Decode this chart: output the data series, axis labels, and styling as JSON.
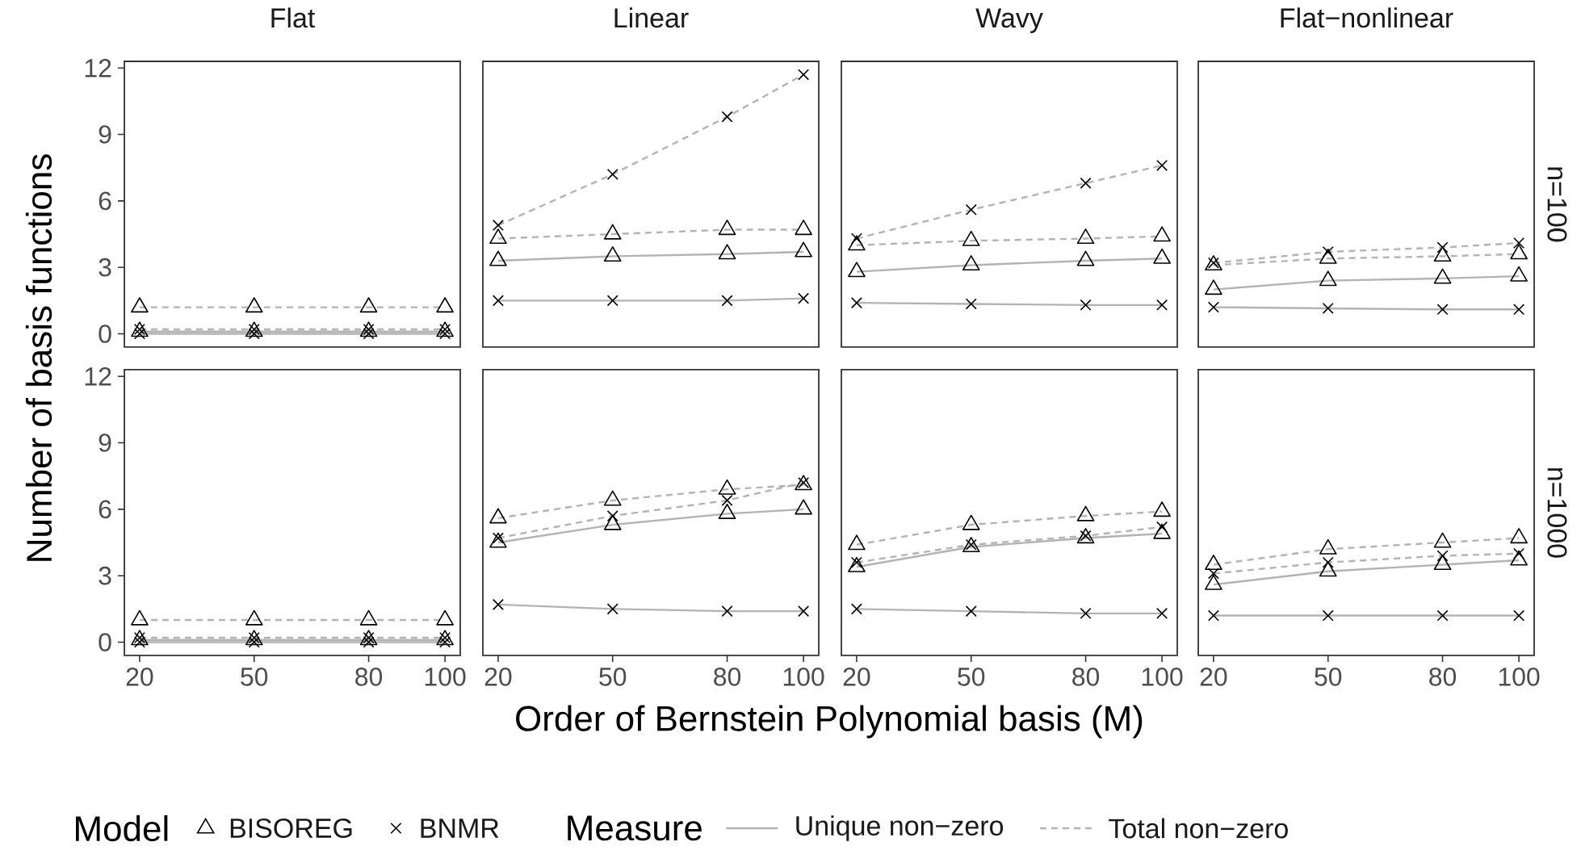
{
  "chart_data": [
    {
      "type": "line",
      "title": "Flat",
      "ylabel": "Number of basis functions",
      "x": [
        20,
        50,
        80,
        100
      ],
      "xlim": [
        16,
        104
      ],
      "ylim": [
        -0.6,
        12.3
      ],
      "xticks": [
        20,
        50,
        80,
        100
      ],
      "yticks": [
        0,
        3,
        6,
        9,
        12
      ],
      "tick_labels": "y",
      "series": [
        {
          "color": "#b3b3b3",
          "marker": "triangle",
          "line_style": "solid",
          "values": [
            0.1,
            0.1,
            0.1,
            0.1
          ]
        },
        {
          "color": "#b3b3b3",
          "marker": "triangle",
          "line_style": "dashed",
          "values": [
            1.2,
            1.2,
            1.2,
            1.2
          ]
        },
        {
          "color": "#b3b3b3",
          "marker": "cross",
          "line_style": "solid",
          "values": [
            0.0,
            0.0,
            0.0,
            0.0
          ]
        },
        {
          "color": "#b3b3b3",
          "marker": "cross",
          "line_style": "dashed",
          "values": [
            0.2,
            0.2,
            0.2,
            0.2
          ]
        }
      ]
    },
    {
      "type": "line",
      "title": "Linear",
      "x": [
        20,
        50,
        80,
        100
      ],
      "xlim": [
        16,
        104
      ],
      "ylim": [
        -0.6,
        12.3
      ],
      "xticks": [
        20,
        50,
        80,
        100
      ],
      "yticks": [
        0,
        3,
        6,
        9,
        12
      ],
      "tick_labels": false,
      "series": [
        {
          "color": "#b3b3b3",
          "marker": "triangle",
          "line_style": "solid",
          "values": [
            3.3,
            3.5,
            3.6,
            3.7
          ]
        },
        {
          "color": "#b3b3b3",
          "marker": "triangle",
          "line_style": "dashed",
          "values": [
            4.3,
            4.5,
            4.7,
            4.7
          ]
        },
        {
          "color": "#b3b3b3",
          "marker": "cross",
          "line_style": "solid",
          "values": [
            1.5,
            1.5,
            1.5,
            1.6
          ]
        },
        {
          "color": "#b3b3b3",
          "marker": "cross",
          "line_style": "dashed",
          "values": [
            4.9,
            7.2,
            9.8,
            11.7
          ]
        }
      ]
    },
    {
      "type": "line",
      "title": "Wavy",
      "x": [
        20,
        50,
        80,
        100
      ],
      "xlim": [
        16,
        104
      ],
      "ylim": [
        -0.6,
        12.3
      ],
      "xticks": [
        20,
        50,
        80,
        100
      ],
      "yticks": [
        0,
        3,
        6,
        9,
        12
      ],
      "tick_labels": false,
      "series": [
        {
          "color": "#b3b3b3",
          "marker": "triangle",
          "line_style": "solid",
          "values": [
            2.8,
            3.1,
            3.3,
            3.4
          ]
        },
        {
          "color": "#b3b3b3",
          "marker": "triangle",
          "line_style": "dashed",
          "values": [
            4.0,
            4.2,
            4.3,
            4.4
          ]
        },
        {
          "color": "#b3b3b3",
          "marker": "cross",
          "line_style": "solid",
          "values": [
            1.4,
            1.35,
            1.3,
            1.3
          ]
        },
        {
          "color": "#b3b3b3",
          "marker": "cross",
          "line_style": "dashed",
          "values": [
            4.3,
            5.6,
            6.8,
            7.6
          ]
        }
      ]
    },
    {
      "type": "line",
      "title": "Flat−nonlinear",
      "annotations": [
        "n=100"
      ],
      "x": [
        20,
        50,
        80,
        100
      ],
      "xlim": [
        16,
        104
      ],
      "ylim": [
        -0.6,
        12.3
      ],
      "xticks": [
        20,
        50,
        80,
        100
      ],
      "yticks": [
        0,
        3,
        6,
        9,
        12
      ],
      "tick_labels": false,
      "series": [
        {
          "color": "#b3b3b3",
          "marker": "triangle",
          "line_style": "solid",
          "values": [
            2.0,
            2.4,
            2.5,
            2.6
          ]
        },
        {
          "color": "#b3b3b3",
          "marker": "triangle",
          "line_style": "dashed",
          "values": [
            3.1,
            3.4,
            3.5,
            3.6
          ]
        },
        {
          "color": "#b3b3b3",
          "marker": "cross",
          "line_style": "solid",
          "values": [
            1.2,
            1.15,
            1.1,
            1.1
          ]
        },
        {
          "color": "#b3b3b3",
          "marker": "cross",
          "line_style": "dashed",
          "values": [
            3.2,
            3.7,
            3.9,
            4.1
          ]
        }
      ]
    },
    {
      "type": "line",
      "xlabel": "Order of Bernstein Polynomial basis (M)",
      "x": [
        20,
        50,
        80,
        100
      ],
      "xlim": [
        16,
        104
      ],
      "ylim": [
        -0.6,
        12.3
      ],
      "xticks": [
        20,
        50,
        80,
        100
      ],
      "yticks": [
        0,
        3,
        6,
        9,
        12
      ],
      "series": [
        {
          "color": "#b3b3b3",
          "marker": "triangle",
          "line_style": "solid",
          "values": [
            0.1,
            0.1,
            0.1,
            0.1
          ]
        },
        {
          "color": "#b3b3b3",
          "marker": "triangle",
          "line_style": "dashed",
          "values": [
            1.0,
            1.0,
            1.0,
            1.0
          ]
        },
        {
          "color": "#b3b3b3",
          "marker": "cross",
          "line_style": "solid",
          "values": [
            0.0,
            0.0,
            0.0,
            0.0
          ]
        },
        {
          "color": "#b3b3b3",
          "marker": "cross",
          "line_style": "dashed",
          "values": [
            0.2,
            0.2,
            0.2,
            0.2
          ]
        }
      ]
    },
    {
      "type": "line",
      "x": [
        20,
        50,
        80,
        100
      ],
      "xlim": [
        16,
        104
      ],
      "ylim": [
        -0.6,
        12.3
      ],
      "xticks": [
        20,
        50,
        80,
        100
      ],
      "yticks": [
        0,
        3,
        6,
        9,
        12
      ],
      "tick_labels": "x",
      "series": [
        {
          "color": "#b3b3b3",
          "marker": "triangle",
          "line_style": "solid",
          "values": [
            4.5,
            5.3,
            5.8,
            6.0
          ]
        },
        {
          "color": "#b3b3b3",
          "marker": "triangle",
          "line_style": "dashed",
          "values": [
            5.6,
            6.4,
            6.9,
            7.1
          ]
        },
        {
          "color": "#b3b3b3",
          "marker": "cross",
          "line_style": "solid",
          "values": [
            1.7,
            1.5,
            1.4,
            1.4
          ]
        },
        {
          "color": "#b3b3b3",
          "marker": "cross",
          "line_style": "dashed",
          "values": [
            4.7,
            5.7,
            6.4,
            7.2
          ]
        }
      ]
    },
    {
      "type": "line",
      "x": [
        20,
        50,
        80,
        100
      ],
      "xlim": [
        16,
        104
      ],
      "ylim": [
        -0.6,
        12.3
      ],
      "xticks": [
        20,
        50,
        80,
        100
      ],
      "yticks": [
        0,
        3,
        6,
        9,
        12
      ],
      "tick_labels": "x",
      "series": [
        {
          "color": "#b3b3b3",
          "marker": "triangle",
          "line_style": "solid",
          "values": [
            3.4,
            4.3,
            4.7,
            4.9
          ]
        },
        {
          "color": "#b3b3b3",
          "marker": "triangle",
          "line_style": "dashed",
          "values": [
            4.4,
            5.3,
            5.7,
            5.9
          ]
        },
        {
          "color": "#b3b3b3",
          "marker": "cross",
          "line_style": "solid",
          "values": [
            1.5,
            1.4,
            1.3,
            1.3
          ]
        },
        {
          "color": "#b3b3b3",
          "marker": "cross",
          "line_style": "dashed",
          "values": [
            3.6,
            4.4,
            4.8,
            5.2
          ]
        }
      ]
    },
    {
      "type": "line",
      "annotations": [
        "n=1000"
      ],
      "x": [
        20,
        50,
        80,
        100
      ],
      "xlim": [
        16,
        104
      ],
      "ylim": [
        -0.6,
        12.3
      ],
      "xticks": [
        20,
        50,
        80,
        100
      ],
      "yticks": [
        0,
        3,
        6,
        9,
        12
      ],
      "tick_labels": "x",
      "series": [
        {
          "color": "#b3b3b3",
          "marker": "triangle",
          "line_style": "solid",
          "values": [
            2.6,
            3.2,
            3.5,
            3.7
          ]
        },
        {
          "color": "#b3b3b3",
          "marker": "triangle",
          "line_style": "dashed",
          "values": [
            3.5,
            4.2,
            4.5,
            4.7
          ]
        },
        {
          "color": "#b3b3b3",
          "marker": "cross",
          "line_style": "solid",
          "values": [
            1.2,
            1.2,
            1.2,
            1.2
          ]
        },
        {
          "color": "#b3b3b3",
          "marker": "cross",
          "line_style": "dashed",
          "values": [
            3.1,
            3.6,
            3.9,
            4.0
          ]
        }
      ]
    },
    {
      "type": "other",
      "legend_title": "Model",
      "annotations": [
        "BISOREG",
        "BNMR",
        "Measure",
        "Unique non−zero",
        "Total non−zero"
      ]
    }
  ]
}
